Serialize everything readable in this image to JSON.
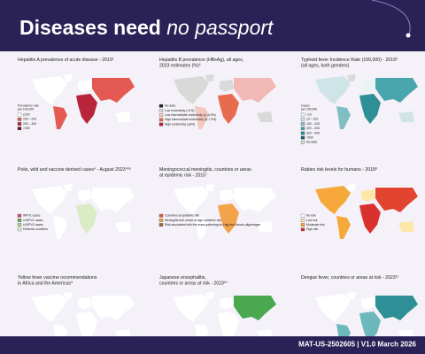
{
  "header": {
    "title": "Diseases need",
    "title_emphasis": "no passport"
  },
  "panels": [
    {
      "title": [
        "Hepatitis A prevalence of acute disease - 2019¹"
      ],
      "legend_title": [
        "Prevalence rate",
        "per 100,000"
      ],
      "legend": [
        {
          "label": "≤100",
          "color": "#ffffff"
        },
        {
          "label": "100 – 200",
          "color": "#e45a52"
        },
        {
          "label": "200 – 300",
          "color": "#b8243a"
        },
        {
          "label": ">300",
          "color": "#6e1030"
        }
      ]
    },
    {
      "title": [
        "Hepatitis B prevalence (HBsAg), all ages,",
        "2023 estimates (%)²"
      ],
      "legend_title": [],
      "legend": [
        {
          "label": "No data",
          "color": "#222222"
        },
        {
          "label": "Low endemicity (<2%)",
          "color": "#d9d9d9"
        },
        {
          "label": "Low intermediate endemicity (2–4.9%)",
          "color": "#f4c8c0"
        },
        {
          "label": "High intermediate endemicity (5–7.9%)",
          "color": "#e86a4f"
        },
        {
          "label": "High endemicity (≥8%)",
          "color": "#b8243a"
        }
      ]
    },
    {
      "title": [
        "Typhoid fever Incidence Rate (100,000) - 2019³",
        "(all ages, both genders)"
      ],
      "legend_title": [
        "Cases",
        "per 100,000"
      ],
      "legend": [
        {
          "label": "<10",
          "color": "#e8f3f4"
        },
        {
          "label": "10 – 100",
          "color": "#cfe4e6"
        },
        {
          "label": "100 – 200",
          "color": "#7fbfc4"
        },
        {
          "label": "200 – 300",
          "color": "#4aa6ad"
        },
        {
          "label": "300 – 500",
          "color": "#2e8f96"
        },
        {
          "label": ">500",
          "color": "#1d5f66"
        },
        {
          "label": "No data",
          "color": "#d9d9d9"
        }
      ]
    },
    {
      "title": [
        "Polio, wild and vaccine derived cases⁴ - August 2023⁴⁵⁶"
      ],
      "legend_title": [],
      "legend": [
        {
          "label": "WPV1 cases",
          "color": "#e0457b"
        },
        {
          "label": "cVDPV1 cases",
          "color": "#6aa84f"
        },
        {
          "label": "cVDPV2 cases",
          "color": "#a7d08c"
        },
        {
          "label": "Endemic countries",
          "color": "#d9ecc4"
        }
      ]
    },
    {
      "title": [
        "Meningococcal meningitis, countries or areas",
        "at epidemic risk - 2015⁷"
      ],
      "legend_title": [],
      "legend": [
        {
          "label": "Countries at epidemic risk",
          "color": "#e0572f"
        },
        {
          "label": "Meningitis belt, areas at high epidemic risk",
          "color": "#f3a34a"
        },
        {
          "label": "Risk associated with the mass gathering for Hajj and Umrah pilgrimages",
          "color": "#9b6b3c"
        }
      ]
    },
    {
      "title": [
        "Rabies risk levels for humans - 2018⁸"
      ],
      "legend_title": [],
      "legend": [
        {
          "label": "No risk",
          "color": "#ffffff"
        },
        {
          "label": "Low risk",
          "color": "#fde7a6"
        },
        {
          "label": "Moderate risk",
          "color": "#f6a93a"
        },
        {
          "label": "High risk",
          "color": "#d9322e"
        }
      ]
    },
    {
      "title": [
        "Yellow fever vaccine recommendations",
        "in Africa and the Americas⁹"
      ],
      "legend_title": [],
      "legend": []
    },
    {
      "title": [
        "Japanese encephalitis,",
        "countries or areas at risk - 2023¹⁰"
      ],
      "legend_title": [],
      "legend": []
    },
    {
      "title": [
        "Dengue fever, countries or areas at risk - 2023¹¹"
      ],
      "legend_title": [],
      "legend": []
    }
  ],
  "footer": "MAT-US-2502605 | V1.0 March 2026"
}
